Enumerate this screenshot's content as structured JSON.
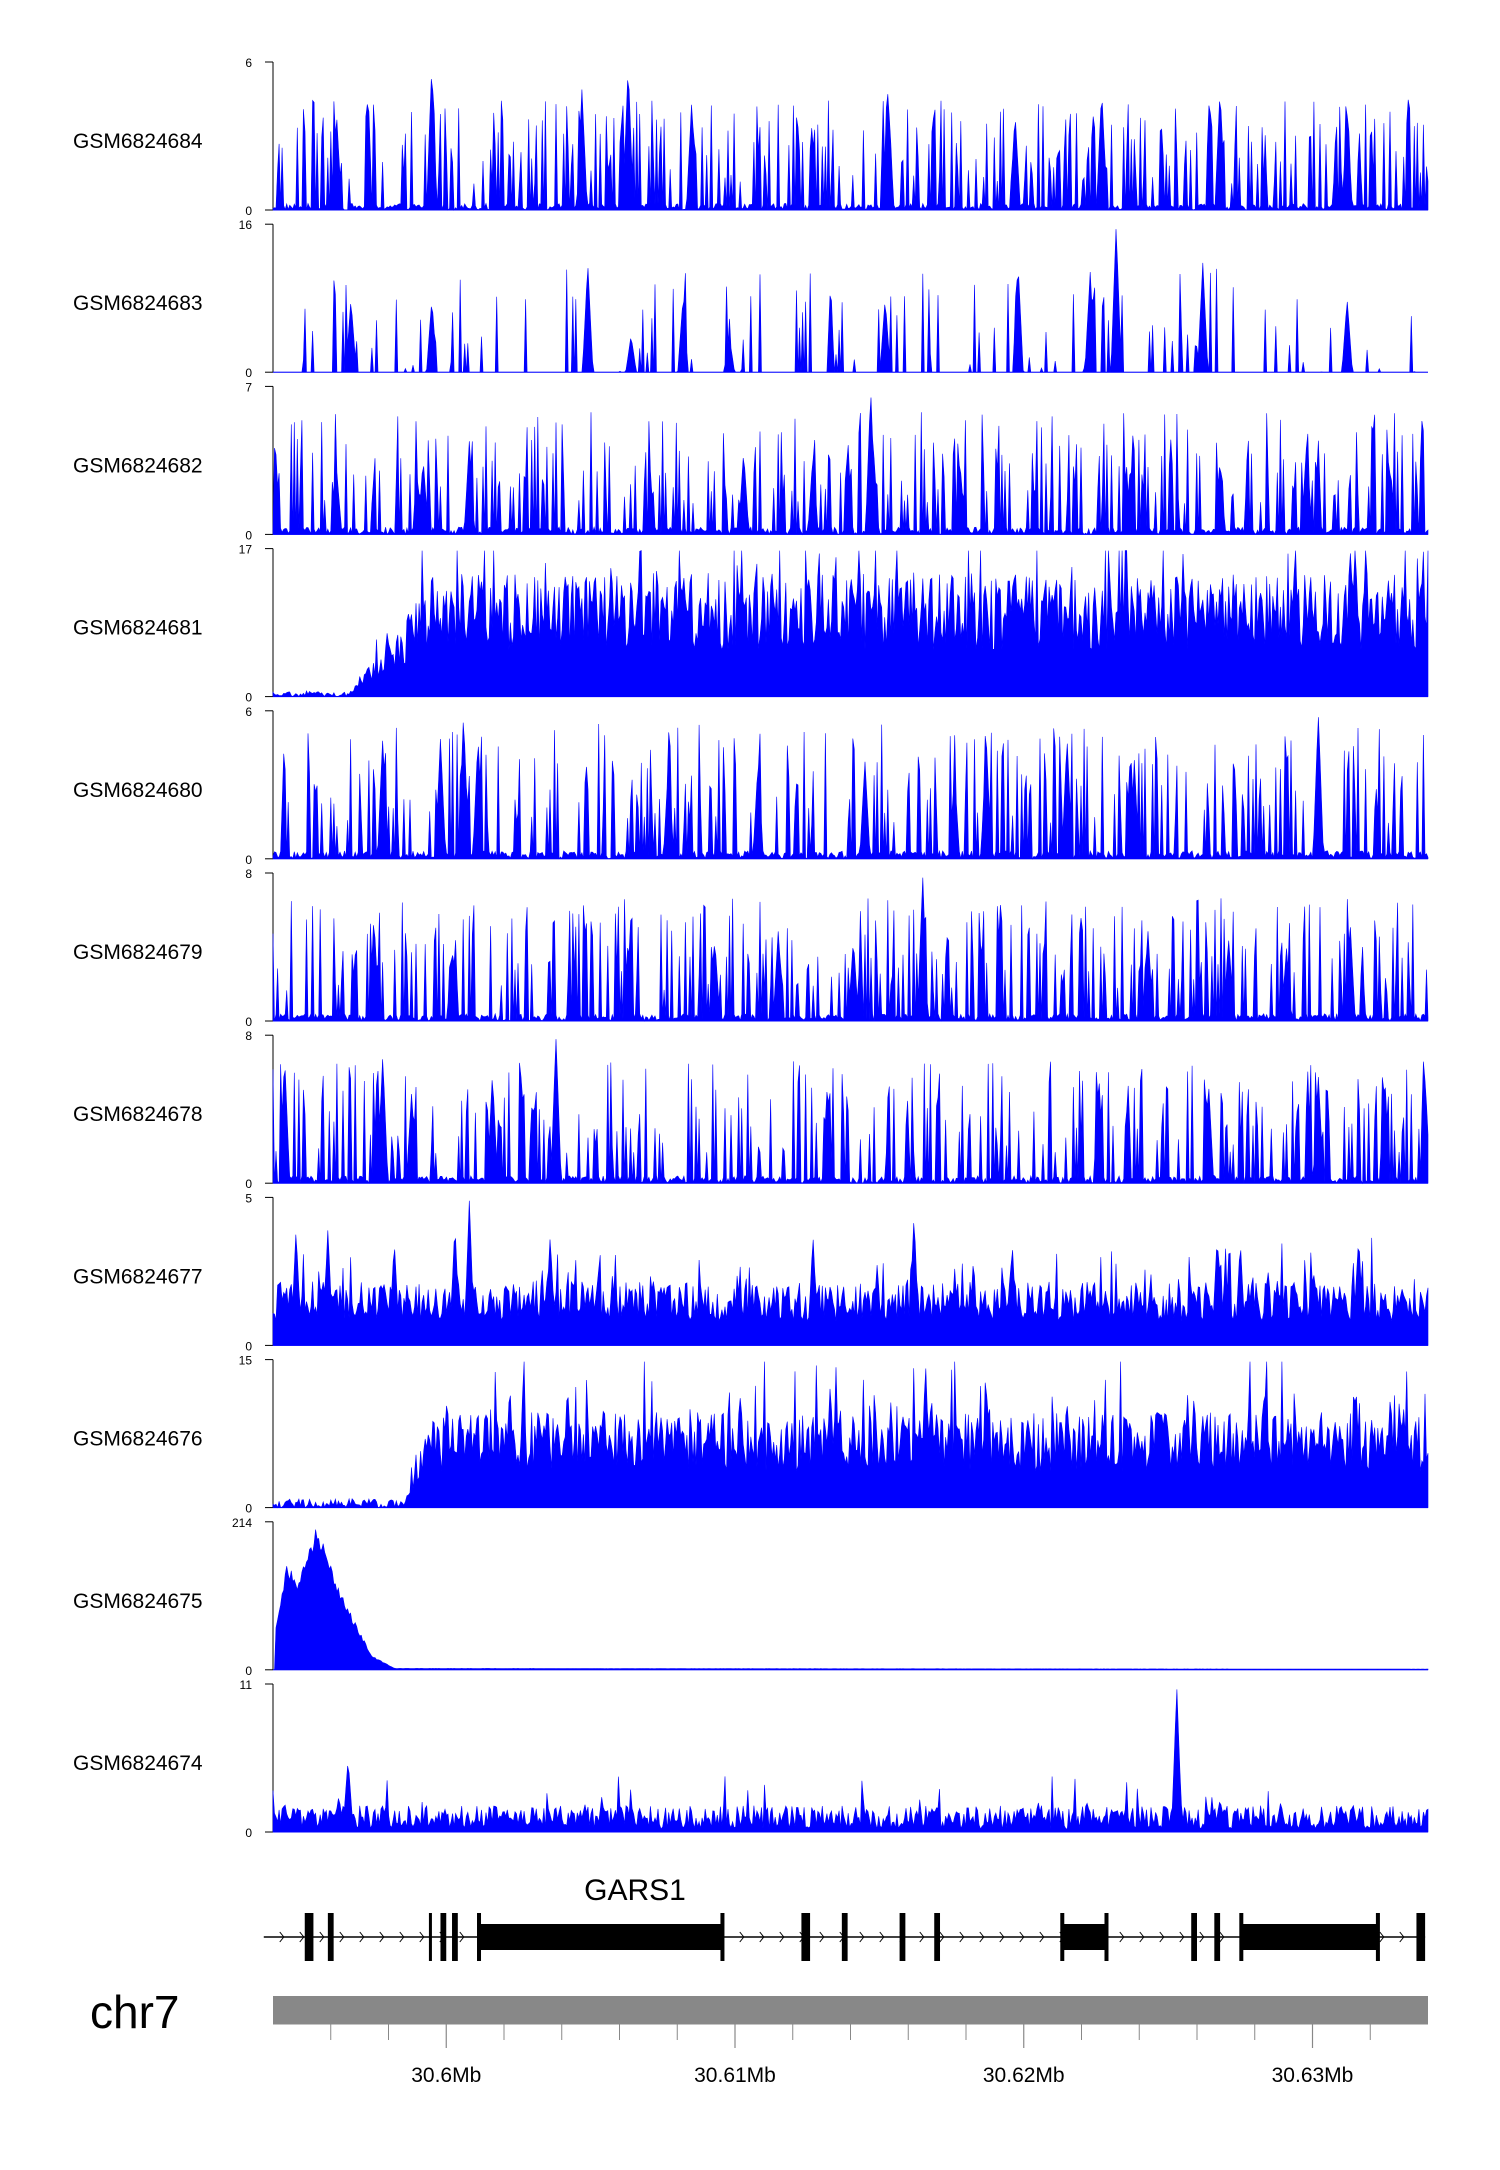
{
  "chart_data": {
    "type": "area",
    "title": "",
    "colors": {
      "track": "#0000ff",
      "axis": "#000000",
      "ideogram": "#888888",
      "gene": "#000000"
    },
    "x_axis": {
      "label": "chr7",
      "range_mb": [
        30.594,
        30.634
      ],
      "ticks": [
        {
          "value": 30.6,
          "label": "30.6Mb"
        },
        {
          "value": 30.61,
          "label": "30.61Mb"
        },
        {
          "value": 30.62,
          "label": "30.62Mb"
        },
        {
          "value": 30.63,
          "label": "30.63Mb"
        }
      ],
      "minor_ticks": [
        30.596,
        30.598,
        30.602,
        30.604,
        30.606,
        30.608,
        30.612,
        30.614,
        30.616,
        30.618,
        30.622,
        30.624,
        30.626,
        30.628,
        30.632
      ]
    },
    "series": [
      {
        "name": "GSM6824684",
        "ymin": "0",
        "ymax": "6",
        "max": 6,
        "pattern": "spiky",
        "baseline": 0.18,
        "peaks": [
          [
            30.5995,
            6
          ],
          [
            30.6063,
            6
          ],
          [
            30.6047,
            5
          ],
          [
            30.6153,
            5
          ],
          [
            30.6227,
            5
          ],
          [
            30.6268,
            5
          ],
          [
            30.5962,
            4
          ],
          [
            30.6085,
            4.5
          ],
          [
            30.6197,
            4
          ],
          [
            30.6312,
            4
          ]
        ]
      },
      {
        "name": "GSM6824683",
        "ymin": "0",
        "ymax": "16",
        "max": 16,
        "pattern": "sparse",
        "baseline": 0.12,
        "peaks": [
          [
            30.6232,
            16
          ],
          [
            30.6049,
            12
          ],
          [
            30.6198,
            12
          ],
          [
            30.6262,
            12
          ],
          [
            30.6223,
            11
          ],
          [
            30.5967,
            8
          ],
          [
            30.5995,
            8
          ],
          [
            30.6082,
            8
          ],
          [
            30.6152,
            8
          ],
          [
            30.6312,
            8
          ],
          [
            30.6064,
            4
          ],
          [
            30.6098,
            4
          ]
        ]
      },
      {
        "name": "GSM6824682",
        "ymin": "0",
        "ymax": "7",
        "max": 7,
        "pattern": "spiky",
        "baseline": 0.2,
        "peaks": [
          [
            30.6147,
            7
          ],
          [
            30.6298,
            4.5
          ],
          [
            30.6008,
            4.5
          ],
          [
            30.6103,
            4
          ],
          [
            30.6127,
            3.8
          ],
          [
            30.5992,
            3.6
          ],
          [
            30.6237,
            3.4
          ],
          [
            30.6268,
            3.6
          ],
          [
            30.6148,
            4
          ],
          [
            30.6178,
            3.3
          ],
          [
            30.5962,
            3.2
          ],
          [
            30.6327,
            3.2
          ]
        ]
      },
      {
        "name": "GSM6824681",
        "ymin": "0",
        "ymax": "17",
        "max": 17,
        "pattern": "dense",
        "baseline": 0.58,
        "ramp": [
          30.5965,
          30.5995,
          0.04
        ],
        "peaks": [
          [
            30.6067,
            17
          ],
          [
            30.6057,
            15
          ],
          [
            30.6013,
            14
          ],
          [
            30.6025,
            13
          ],
          [
            30.6092,
            12
          ],
          [
            30.6148,
            13
          ],
          [
            30.6165,
            14
          ],
          [
            30.6245,
            14
          ],
          [
            30.6268,
            14
          ],
          [
            30.6315,
            16
          ],
          [
            30.6331,
            13
          ]
        ]
      },
      {
        "name": "GSM6824680",
        "ymin": "0",
        "ymax": "6",
        "max": 6,
        "pattern": "spiky",
        "baseline": 0.22,
        "peaks": [
          [
            30.6006,
            6
          ],
          [
            30.6302,
            6
          ],
          [
            30.5998,
            5
          ],
          [
            30.6011,
            5
          ],
          [
            30.5978,
            5
          ],
          [
            30.6187,
            5
          ],
          [
            30.6215,
            5
          ],
          [
            30.6237,
            4.5
          ],
          [
            30.6077,
            4
          ],
          [
            30.6108,
            4
          ],
          [
            30.6145,
            4
          ],
          [
            30.6176,
            3.5
          ]
        ]
      },
      {
        "name": "GSM6824679",
        "ymin": "0",
        "ymax": "8",
        "max": 8,
        "pattern": "spiky",
        "baseline": 0.2,
        "peaks": [
          [
            30.6165,
            8
          ],
          [
            30.5975,
            5.5
          ],
          [
            30.6313,
            5.5
          ],
          [
            30.6243,
            5
          ],
          [
            30.6115,
            5
          ],
          [
            30.6093,
            4.5
          ],
          [
            30.6063,
            4.5
          ],
          [
            30.6002,
            4
          ],
          [
            30.6141,
            4.5
          ],
          [
            30.6271,
            4.5
          ],
          [
            30.6291,
            4
          ]
        ]
      },
      {
        "name": "GSM6824678",
        "ymin": "0",
        "ymax": "8",
        "max": 8,
        "pattern": "spiky",
        "baseline": 0.2,
        "peaks": [
          [
            30.6038,
            8
          ],
          [
            30.5944,
            7
          ],
          [
            30.5978,
            7
          ],
          [
            30.6016,
            6
          ],
          [
            30.6132,
            5.5
          ],
          [
            30.6226,
            6
          ],
          [
            30.6264,
            5.5
          ],
          [
            30.6302,
            6
          ],
          [
            30.6325,
            6
          ],
          [
            30.6339,
            5.8
          ],
          [
            30.5988,
            5
          ]
        ]
      },
      {
        "name": "GSM6824677",
        "ymin": "0",
        "ymax": "5",
        "max": 5,
        "pattern": "dense",
        "baseline": 0.3,
        "peaks": [
          [
            30.6008,
            5
          ],
          [
            30.6162,
            4.5
          ],
          [
            30.6003,
            4.2
          ],
          [
            30.5948,
            4
          ],
          [
            30.5959,
            4
          ],
          [
            30.5982,
            3.6
          ],
          [
            30.6036,
            3.8
          ],
          [
            30.6127,
            3.8
          ],
          [
            30.6196,
            3.5
          ],
          [
            30.6275,
            3.6
          ],
          [
            30.6316,
            3.8
          ],
          [
            30.6267,
            3.8
          ]
        ]
      },
      {
        "name": "GSM6824676",
        "ymin": "0",
        "ymax": "15",
        "max": 15,
        "pattern": "dense",
        "baseline": 0.45,
        "ramp": [
          30.5985,
          30.5995,
          0.06
        ],
        "peaks": [
          [
            30.6166,
            15
          ],
          [
            30.6133,
            13
          ],
          [
            30.6042,
            13
          ],
          [
            30.6022,
            13
          ],
          [
            30.6168,
            12
          ],
          [
            30.6215,
            11
          ],
          [
            30.6259,
            12
          ],
          [
            30.6315,
            13
          ],
          [
            30.6327,
            12
          ],
          [
            30.6154,
            11
          ],
          [
            30.6082,
            9
          ]
        ]
      },
      {
        "name": "GSM6824675",
        "ymin": "0",
        "ymax": "214",
        "max": 214,
        "pattern": "burst",
        "burst": [
          [
            30.5941,
            0.3
          ],
          [
            30.5945,
            0.75
          ],
          [
            30.5948,
            0.6
          ],
          [
            30.5953,
            0.85
          ],
          [
            30.5955,
            1.0
          ],
          [
            30.5958,
            0.85
          ],
          [
            30.5962,
            0.6
          ],
          [
            30.5968,
            0.35
          ],
          [
            30.5974,
            0.1
          ],
          [
            30.5982,
            0.01
          ],
          [
            30.634,
            0.005
          ]
        ]
      },
      {
        "name": "GSM6824674",
        "ymin": "0",
        "ymax": "11",
        "max": 11,
        "pattern": "low",
        "baseline": 0.1,
        "peaks": [
          [
            30.6253,
            11
          ],
          [
            30.5966,
            5.5
          ],
          [
            30.5944,
            2.3
          ],
          [
            30.6017,
            2
          ],
          [
            30.6048,
            2.1
          ],
          [
            30.6205,
            2.3
          ],
          [
            30.6289,
            2.3
          ],
          [
            30.6314,
            2.2
          ],
          [
            30.6268,
            2.5
          ],
          [
            30.6117,
            1.6
          ]
        ]
      }
    ],
    "gene": {
      "name": "GARS1",
      "range_mb": [
        30.5942,
        30.6339
      ],
      "strand": "+",
      "exons": [
        [
          30.5951,
          30.5954,
          "thin"
        ],
        [
          30.5959,
          30.5961,
          "thin"
        ],
        [
          30.5994,
          30.5995,
          "thin"
        ],
        [
          30.5998,
          30.6,
          "thin"
        ],
        [
          30.6002,
          30.6004,
          "thin"
        ],
        [
          30.6011,
          30.6096,
          "wide"
        ],
        [
          30.6123,
          30.6126,
          "thin"
        ],
        [
          30.6137,
          30.6139,
          "thin"
        ],
        [
          30.6157,
          30.6159,
          "thin"
        ],
        [
          30.6169,
          30.6171,
          "thin"
        ],
        [
          30.6213,
          30.6229,
          "wide"
        ],
        [
          30.6258,
          30.626,
          "thin"
        ],
        [
          30.6266,
          30.6268,
          "thin"
        ],
        [
          30.6275,
          30.6323,
          "wide"
        ],
        [
          30.6336,
          30.6339,
          "thin"
        ]
      ]
    }
  }
}
